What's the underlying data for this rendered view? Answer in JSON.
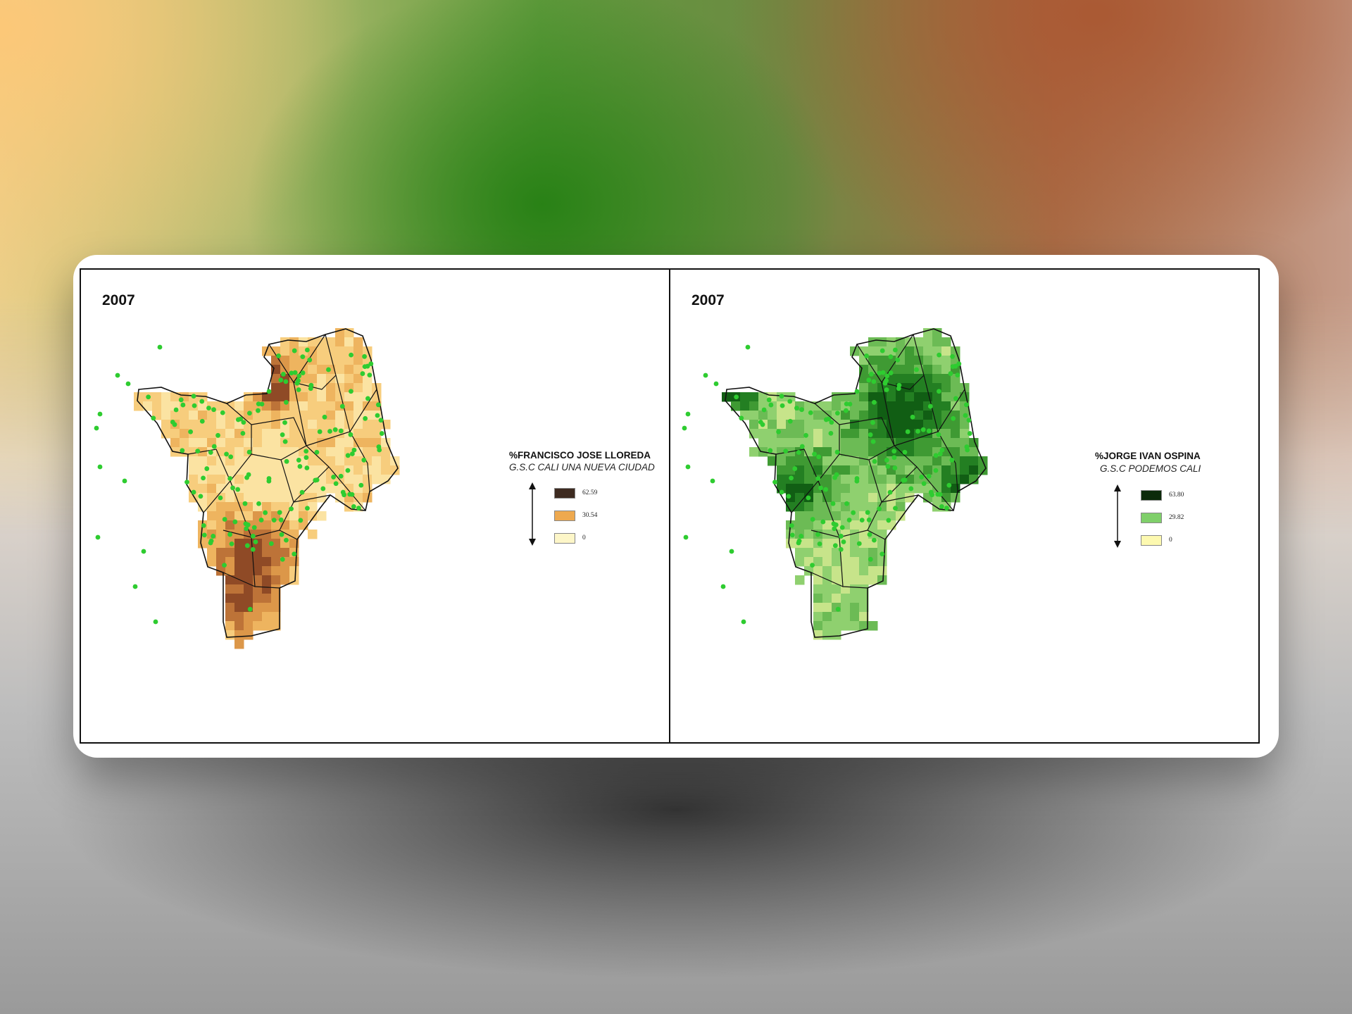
{
  "maps": [
    {
      "year": "2007",
      "legend": {
        "title": "%FRANCISCO JOSE LLOREDA",
        "subtitle": "G.S.C CALI UNA NUEVA CIUDAD",
        "classes": [
          {
            "label": "62.59",
            "color": "#3d2a20"
          },
          {
            "label": "30.54",
            "color": "#eea94f"
          },
          {
            "label": "0",
            "color": "#fdf6c8"
          }
        ]
      },
      "palette": [
        "#fbe3a2",
        "#f7cd7d",
        "#eeb45f",
        "#dc9749",
        "#bd7338",
        "#8f4a26"
      ],
      "dot_color": "#2ecc30"
    },
    {
      "year": "2007",
      "legend": {
        "title": "%JORGE IVAN OSPINA",
        "subtitle": "G.S.C PODEMOS CALI",
        "classes": [
          {
            "label": "63.80",
            "color": "#0c2a0a"
          },
          {
            "label": "29.82",
            "color": "#7fcf6a"
          },
          {
            "label": "0",
            "color": "#fdf9b0"
          }
        ]
      },
      "palette": [
        "#c7e48a",
        "#8fd06f",
        "#6cbb55",
        "#3f9a33",
        "#237f22",
        "#115e14"
      ],
      "dot_color": "#2ecc30"
    }
  ]
}
